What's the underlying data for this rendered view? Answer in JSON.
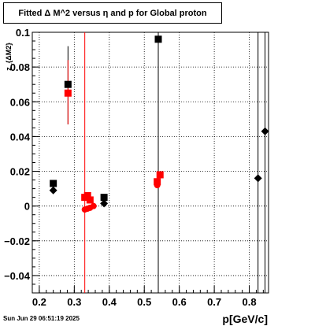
{
  "title": "Fitted Δ M^2 versus η and p for Global proton",
  "footer": "Sun Jun 29 06:51:19 2025",
  "chart_data": {
    "type": "scatter",
    "title": "Fitted Δ M^2 versus η and p for Global proton",
    "xlabel": "p[GeV/c]",
    "ylabel": "z_{ΔM2}",
    "xlim": [
      0.18,
      0.855
    ],
    "ylim": [
      -0.05,
      0.1
    ],
    "grid": true,
    "x_ticks": [
      0.2,
      0.3,
      0.4,
      0.5,
      0.6,
      0.7,
      0.8
    ],
    "x_tick_labels": [
      "0.2",
      "0.3",
      "0.4",
      "0.5",
      "0.6",
      "0.7",
      "0.8"
    ],
    "y_ticks": [
      -0.04,
      -0.02,
      0,
      0.02,
      0.04,
      0.06,
      0.08,
      0.1
    ],
    "y_tick_labels": [
      "−0.04",
      "−0.02",
      "0",
      "0.02",
      "0.04",
      "0.06",
      "0.08",
      "0.1"
    ],
    "series": [
      {
        "marker": "square",
        "color": "#000000",
        "points": [
          {
            "x": 0.24,
            "y": 0.013
          },
          {
            "x": 0.282,
            "y": 0.07,
            "ylo": 0.047,
            "yhi": 0.092
          },
          {
            "x": 0.385,
            "y": 0.005
          },
          {
            "x": 0.54,
            "y": 0.096,
            "ylo": -0.05,
            "yhi": 0.1
          }
        ]
      },
      {
        "marker": "diamond",
        "color": "#000000",
        "points": [
          {
            "x": 0.24,
            "y": 0.009
          },
          {
            "x": 0.385,
            "y": 0.0015
          },
          {
            "x": 0.825,
            "y": 0.016,
            "ylo": -0.05,
            "yhi": 0.1
          },
          {
            "x": 0.845,
            "y": 0.043,
            "ylo": -0.05,
            "yhi": 0.1
          }
        ]
      },
      {
        "marker": "square",
        "color": "#ff0000",
        "points": [
          {
            "x": 0.282,
            "y": 0.065,
            "ylo": 0.047,
            "yhi": 0.084
          },
          {
            "x": 0.33,
            "y": 0.005
          },
          {
            "x": 0.338,
            "y": 0.006
          },
          {
            "x": 0.345,
            "y": 0.0035
          },
          {
            "x": 0.537,
            "y": 0.014
          },
          {
            "x": 0.545,
            "y": 0.018
          }
        ]
      },
      {
        "marker": "circle",
        "color": "#ff0000",
        "points": [
          {
            "x": 0.33,
            "y": -0.002,
            "ylo": -0.05,
            "yhi": 0.1
          },
          {
            "x": 0.338,
            "y": -0.0015
          },
          {
            "x": 0.345,
            "y": -0.001
          },
          {
            "x": 0.355,
            "y": 0.0
          },
          {
            "x": 0.537,
            "y": 0.012
          }
        ]
      }
    ]
  }
}
